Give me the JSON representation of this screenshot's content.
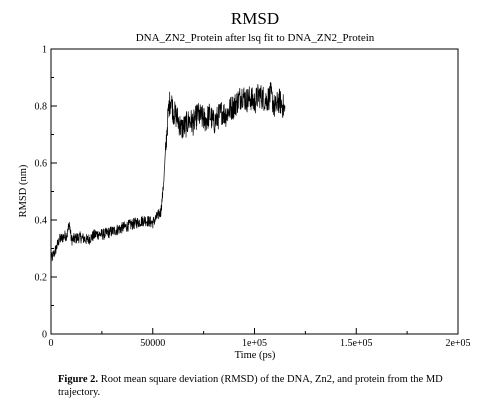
{
  "chart_data": {
    "type": "line",
    "title": "RMSD",
    "subtitle": "DNA_ZN2_Protein after lsq fit to DNA_ZN2_Protein",
    "xlabel": "Time (ps)",
    "ylabel": "RMSD (nm)",
    "xlim": [
      0,
      200000
    ],
    "ylim": [
      0,
      1
    ],
    "x_ticks": [
      0,
      50000,
      100000,
      150000,
      200000
    ],
    "x_tick_labels": [
      "0",
      "50000",
      "1e+05",
      "1.5e+05",
      "2e+05"
    ],
    "y_ticks": [
      0,
      0.2,
      0.4,
      0.6,
      0.8,
      1
    ],
    "y_tick_labels": [
      "0",
      "0.2",
      "0.4",
      "0.6",
      "0.8",
      "1"
    ],
    "grid": false,
    "series": [
      {
        "color": "#000000",
        "x": [
          0,
          2000,
          4000,
          6000,
          8000,
          9000,
          10000,
          14000,
          18000,
          22000,
          26000,
          30000,
          34000,
          38000,
          42000,
          46000,
          50000,
          52000,
          54000,
          55000,
          56000,
          57000,
          58000,
          59000,
          60000,
          62000,
          64000,
          66000,
          68000,
          70000,
          72000,
          74000,
          76000,
          78000,
          80000,
          82000,
          84000,
          86000,
          88000,
          90000,
          92000,
          94000,
          96000,
          98000,
          100000,
          102000,
          104000,
          106000,
          108000,
          110000,
          112000,
          114000,
          115000
        ],
        "y": [
          0.26,
          0.29,
          0.33,
          0.34,
          0.35,
          0.39,
          0.33,
          0.34,
          0.33,
          0.35,
          0.35,
          0.36,
          0.37,
          0.38,
          0.39,
          0.4,
          0.39,
          0.41,
          0.43,
          0.5,
          0.6,
          0.72,
          0.8,
          0.83,
          0.78,
          0.76,
          0.72,
          0.73,
          0.75,
          0.74,
          0.77,
          0.76,
          0.75,
          0.77,
          0.74,
          0.76,
          0.78,
          0.77,
          0.79,
          0.8,
          0.82,
          0.84,
          0.82,
          0.83,
          0.81,
          0.84,
          0.83,
          0.82,
          0.84,
          0.79,
          0.82,
          0.8,
          0.78
        ]
      }
    ]
  },
  "caption": {
    "label": "Figure 2.",
    "text": " Root mean square deviation (RMSD) of the DNA, Zn2, and protein from the MD trajectory."
  }
}
